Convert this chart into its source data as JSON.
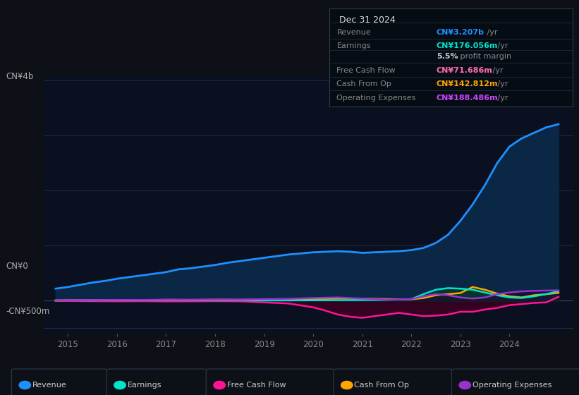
{
  "background_color": "#0d1117",
  "chart_bg_color": "#0a1020",
  "ylabel_top": "CN¥4b",
  "ylabel_zero": "CN¥0",
  "ylabel_neg": "-CN¥500m",
  "xlabel_ticks": [
    2015,
    2016,
    2017,
    2018,
    2019,
    2020,
    2021,
    2022,
    2023,
    2024
  ],
  "info_box": {
    "title": "Dec 31 2024",
    "rows": [
      {
        "label": "Revenue",
        "value": "CN¥3.207b /yr",
        "value_color": "#1e90ff",
        "bold_prefix": "CN¥3.207b",
        "suffix": " /yr"
      },
      {
        "label": "Earnings",
        "value": "CN¥176.056m /yr",
        "value_color": "#00e5cc",
        "bold_prefix": "CN¥176.056m",
        "suffix": " /yr"
      },
      {
        "label": "",
        "value": "5.5% profit margin",
        "value_color": "#cccccc",
        "bold_prefix": "5.5%",
        "suffix": " profit margin"
      },
      {
        "label": "Free Cash Flow",
        "value": "CN¥71.686m /yr",
        "value_color": "#ff69b4",
        "bold_prefix": "CN¥71.686m",
        "suffix": " /yr"
      },
      {
        "label": "Cash From Op",
        "value": "CN¥142.812m /yr",
        "value_color": "#ffa500",
        "bold_prefix": "CN¥142.812m",
        "suffix": " /yr"
      },
      {
        "label": "Operating Expenses",
        "value": "CN¥188.486m /yr",
        "value_color": "#cc44ff",
        "bold_prefix": "CN¥188.486m",
        "suffix": " /yr"
      }
    ]
  },
  "series": {
    "revenue": {
      "color": "#1e90ff",
      "fill_color": "#0a2a4a",
      "fill_alpha": 0.9,
      "linewidth": 2.0,
      "label": "Revenue",
      "data_x": [
        2014.75,
        2015.0,
        2015.25,
        2015.5,
        2015.75,
        2016.0,
        2016.25,
        2016.5,
        2016.75,
        2017.0,
        2017.25,
        2017.5,
        2017.75,
        2018.0,
        2018.25,
        2018.5,
        2018.75,
        2019.0,
        2019.25,
        2019.5,
        2019.75,
        2020.0,
        2020.25,
        2020.5,
        2020.75,
        2021.0,
        2021.25,
        2021.5,
        2021.75,
        2022.0,
        2022.25,
        2022.5,
        2022.75,
        2023.0,
        2023.25,
        2023.5,
        2023.75,
        2024.0,
        2024.25,
        2024.5,
        2024.75,
        2025.0
      ],
      "data_y": [
        220,
        250,
        290,
        330,
        360,
        400,
        430,
        460,
        490,
        520,
        570,
        590,
        620,
        650,
        690,
        720,
        750,
        780,
        810,
        840,
        860,
        880,
        890,
        900,
        890,
        870,
        880,
        890,
        900,
        920,
        960,
        1050,
        1200,
        1450,
        1750,
        2100,
        2500,
        2800,
        2950,
        3050,
        3150,
        3207
      ]
    },
    "earnings": {
      "color": "#00e5cc",
      "fill_color": "#003830",
      "fill_alpha": 0.85,
      "linewidth": 1.8,
      "label": "Earnings",
      "data_x": [
        2014.75,
        2015.0,
        2015.5,
        2016.0,
        2016.5,
        2017.0,
        2017.5,
        2018.0,
        2018.5,
        2019.0,
        2019.5,
        2020.0,
        2020.5,
        2021.0,
        2021.5,
        2022.0,
        2022.25,
        2022.5,
        2022.75,
        2023.0,
        2023.25,
        2023.5,
        2023.75,
        2024.0,
        2024.25,
        2024.5,
        2024.75,
        2025.0
      ],
      "data_y": [
        5,
        8,
        6,
        10,
        8,
        10,
        12,
        8,
        10,
        5,
        6,
        8,
        10,
        12,
        15,
        30,
        120,
        200,
        230,
        220,
        200,
        150,
        100,
        60,
        50,
        80,
        120,
        176
      ]
    },
    "free_cash_flow": {
      "color": "#ff1493",
      "fill_color": "#3a0020",
      "fill_alpha": 0.85,
      "linewidth": 1.8,
      "label": "Free Cash Flow",
      "data_x": [
        2014.75,
        2015.0,
        2015.5,
        2016.0,
        2016.5,
        2017.0,
        2017.5,
        2018.0,
        2018.5,
        2019.0,
        2019.5,
        2020.0,
        2020.25,
        2020.5,
        2020.75,
        2021.0,
        2021.25,
        2021.5,
        2021.75,
        2022.0,
        2022.25,
        2022.5,
        2022.75,
        2023.0,
        2023.25,
        2023.5,
        2023.75,
        2024.0,
        2024.25,
        2024.5,
        2024.75,
        2025.0
      ],
      "data_y": [
        -2,
        -5,
        -8,
        -10,
        -8,
        -12,
        -10,
        -8,
        -10,
        -30,
        -50,
        -120,
        -180,
        -250,
        -290,
        -310,
        -280,
        -250,
        -220,
        -250,
        -280,
        -270,
        -250,
        -200,
        -200,
        -160,
        -130,
        -80,
        -60,
        -40,
        -30,
        72
      ]
    },
    "cash_from_op": {
      "color": "#ffa500",
      "fill_color": "#3a2800",
      "fill_alpha": 0.7,
      "linewidth": 1.8,
      "label": "Cash From Op",
      "data_x": [
        2014.75,
        2015.0,
        2015.5,
        2016.0,
        2016.5,
        2017.0,
        2017.5,
        2018.0,
        2018.5,
        2019.0,
        2019.5,
        2020.0,
        2020.5,
        2021.0,
        2021.5,
        2022.0,
        2022.25,
        2022.5,
        2022.75,
        2023.0,
        2023.25,
        2023.5,
        2023.75,
        2024.0,
        2024.25,
        2024.5,
        2024.75,
        2025.0
      ],
      "data_y": [
        5,
        8,
        10,
        15,
        10,
        18,
        15,
        20,
        18,
        20,
        25,
        30,
        40,
        40,
        30,
        25,
        50,
        100,
        120,
        140,
        250,
        200,
        130,
        80,
        60,
        100,
        120,
        143
      ]
    },
    "operating_expenses": {
      "color": "#9932cc",
      "fill_color": "#200030",
      "fill_alpha": 0.5,
      "linewidth": 1.8,
      "label": "Operating Expenses",
      "data_x": [
        2014.75,
        2015.0,
        2015.5,
        2016.0,
        2016.5,
        2017.0,
        2017.5,
        2018.0,
        2018.5,
        2019.0,
        2019.5,
        2020.0,
        2020.5,
        2021.0,
        2021.5,
        2022.0,
        2022.25,
        2022.5,
        2022.75,
        2023.0,
        2023.25,
        2023.5,
        2023.75,
        2024.0,
        2024.25,
        2024.5,
        2024.75,
        2025.0
      ],
      "data_y": [
        8,
        10,
        12,
        15,
        15,
        18,
        18,
        20,
        20,
        30,
        35,
        50,
        60,
        40,
        20,
        30,
        80,
        120,
        100,
        60,
        40,
        60,
        120,
        150,
        170,
        180,
        185,
        188
      ]
    }
  },
  "legend": [
    {
      "label": "Revenue",
      "color": "#1e90ff"
    },
    {
      "label": "Earnings",
      "color": "#00e5cc"
    },
    {
      "label": "Free Cash Flow",
      "color": "#ff1493"
    },
    {
      "label": "Cash From Op",
      "color": "#ffa500"
    },
    {
      "label": "Operating Expenses",
      "color": "#9932cc"
    }
  ],
  "ylim": [
    -600,
    4100
  ],
  "xlim": [
    2014.5,
    2025.3
  ],
  "y_gridlines": [
    -500,
    0,
    1000,
    2000,
    3000,
    4000
  ]
}
